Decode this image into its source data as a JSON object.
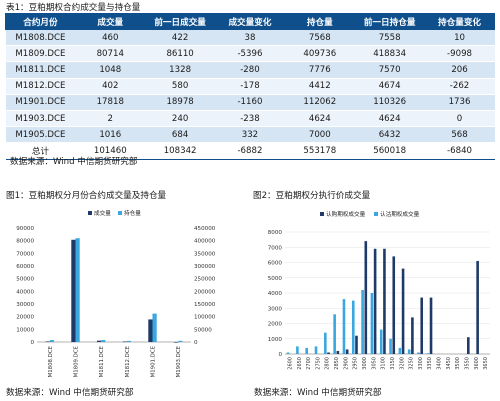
{
  "table1": {
    "caption": "表1：豆粕期权合约成交量与持仓量",
    "headers": [
      "合约月份",
      "成交量",
      "前一日成交量",
      "成交量变化",
      "持仓量",
      "前一日持仓量",
      "持仓量变化"
    ],
    "rows": [
      [
        "M1808.DCE",
        "460",
        "422",
        "38",
        "7568",
        "7558",
        "10"
      ],
      [
        "M1809.DCE",
        "80714",
        "86110",
        "-5396",
        "409736",
        "418834",
        "-9098"
      ],
      [
        "M1811.DCE",
        "1048",
        "1328",
        "-280",
        "7776",
        "7570",
        "206"
      ],
      [
        "M1812.DCE",
        "402",
        "580",
        "-178",
        "4412",
        "4674",
        "-262"
      ],
      [
        "M1901.DCE",
        "17818",
        "18978",
        "-1160",
        "112062",
        "110326",
        "1736"
      ],
      [
        "M1903.DCE",
        "2",
        "240",
        "-238",
        "4624",
        "4624",
        "0"
      ],
      [
        "M1905.DCE",
        "1016",
        "684",
        "332",
        "7000",
        "6432",
        "568"
      ]
    ],
    "total": [
      "总计",
      "101460",
      "108342",
      "-6882",
      "553178",
      "560018",
      "-6840"
    ],
    "source": "数据来源：Wind  中信期货研究部"
  },
  "figure1": {
    "caption": "图1：豆粕期权分月份合约成交量及持仓量",
    "source": "数据来源：Wind  中信期货研究部"
  },
  "figure2": {
    "caption": "图2：豆粕期权分执行价成交量",
    "source": "数据来源：Wind  中信期货研究部"
  },
  "colors": {
    "header_bg": "#0e4f8c",
    "dark_series": "#1f3a68",
    "light_series": "#3aa7de"
  },
  "chart_data": [
    {
      "type": "bar",
      "categories": [
        "M1808.DCE",
        "M1809.DCE",
        "M1811.DCE",
        "M1812.DCE",
        "M1901.DCE",
        "M1903.DCE"
      ],
      "series": [
        {
          "name": "成交量",
          "axis": "left",
          "color": "#1f3a68",
          "values": [
            460,
            80714,
            1048,
            402,
            17818,
            2
          ]
        },
        {
          "name": "持仓量",
          "axis": "right",
          "color": "#3aa7de",
          "values": [
            7568,
            409736,
            7776,
            4412,
            112062,
            4624
          ]
        }
      ],
      "ylim_left": [
        0,
        90000
      ],
      "yticks_left": [
        "0",
        "10000",
        "20000",
        "30000",
        "40000",
        "50000",
        "60000",
        "70000",
        "80000",
        "90000"
      ],
      "ylim_right": [
        0,
        450000
      ],
      "yticks_right": [
        "0",
        "50000",
        "100000",
        "150000",
        "200000",
        "250000",
        "300000",
        "350000",
        "400000",
        "450000"
      ],
      "legend": "top-center"
    },
    {
      "type": "bar",
      "categories": [
        "2600",
        "2650",
        "2700",
        "2750",
        "2800",
        "2850",
        "2900",
        "2950",
        "3000",
        "3050",
        "3100",
        "3150",
        "3200",
        "3250",
        "3300",
        "3350",
        "3400",
        "3450",
        "3500",
        "3550",
        "3600",
        "3650"
      ],
      "series": [
        {
          "name": "认购期权成交量",
          "color": "#1f3a68",
          "values": [
            0,
            0,
            0,
            0,
            100,
            200,
            300,
            1200,
            7400,
            6900,
            6900,
            6400,
            5600,
            2400,
            3700,
            3700,
            0,
            0,
            0,
            1100,
            6100,
            0
          ]
        },
        {
          "name": "认沽期权成交量",
          "color": "#3aa7de",
          "values": [
            100,
            500,
            400,
            500,
            1400,
            2600,
            3600,
            3500,
            4200,
            4000,
            1600,
            1000,
            400,
            300,
            100,
            50,
            0,
            0,
            0,
            0,
            0,
            0
          ]
        }
      ],
      "ylim": [
        0,
        8000
      ],
      "yticks": [
        "0",
        "1000",
        "2000",
        "3000",
        "4000",
        "5000",
        "6000",
        "7000",
        "8000"
      ],
      "legend": "top-center"
    }
  ]
}
